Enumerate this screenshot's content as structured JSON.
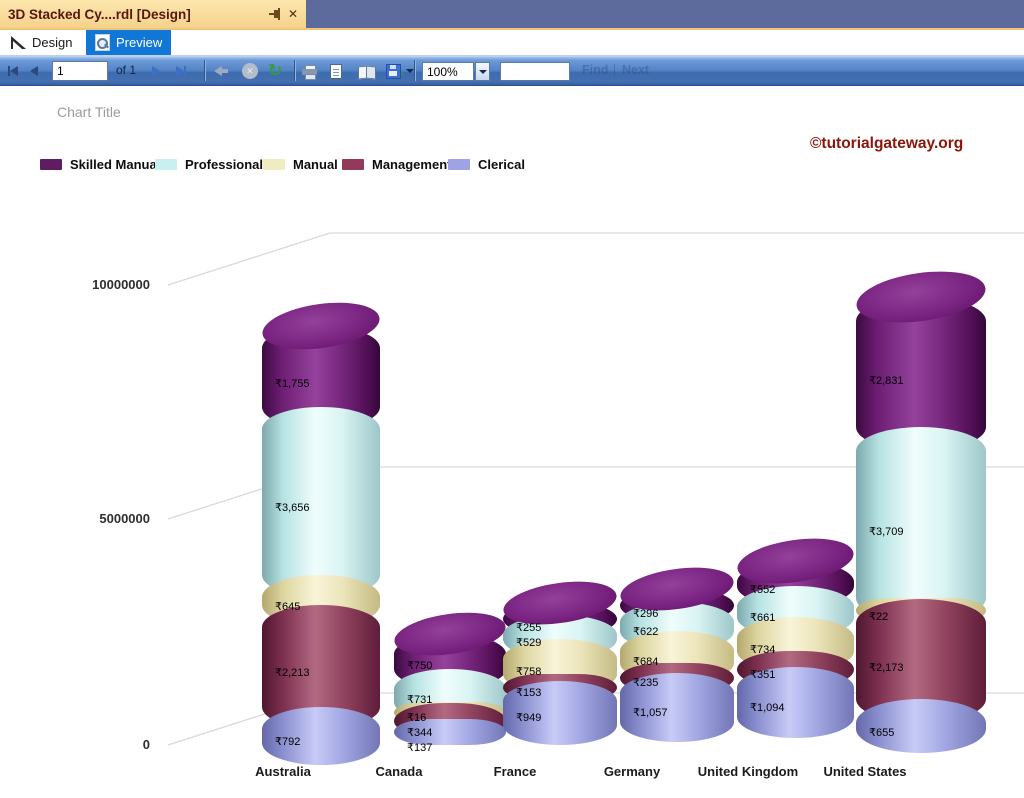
{
  "window": {
    "tab_title": "3D Stacked Cy....rdl [Design]"
  },
  "designer_tabs": {
    "design": "Design",
    "preview": "Preview"
  },
  "toolbar": {
    "page_value": "1",
    "of_label": "of 1",
    "zoom_value": "100%",
    "find_value": "",
    "find_label": "Find",
    "next_label": "Next"
  },
  "watermark": "©tutorialgateway.org",
  "chart_data": {
    "type": "3d-stacked-cylinder-bar",
    "title": "Chart Title",
    "currency_prefix": "₹",
    "legend_position": "top-left",
    "categories": [
      "Australia",
      "Canada",
      "France",
      "Germany",
      "United Kingdom",
      "United States"
    ],
    "series": [
      {
        "name": "Skilled Manual",
        "color": "#5E1D62",
        "values": [
          1755,
          750,
          255,
          296,
          552,
          2831
        ]
      },
      {
        "name": "Professional",
        "color": "#C9EFF0",
        "values": [
          3656,
          731,
          529,
          622,
          661,
          3709
        ]
      },
      {
        "name": "Manual",
        "color": "#F0ECC2",
        "values": [
          645,
          16,
          758,
          684,
          734,
          22
        ]
      },
      {
        "name": "Management",
        "color": "#93395B",
        "values": [
          2213,
          344,
          153,
          235,
          351,
          2173
        ]
      },
      {
        "name": "Clerical",
        "color": "#9FA3E3",
        "values": [
          792,
          137,
          949,
          1057,
          1094,
          655
        ]
      }
    ],
    "stack_order_bottom_to_top": [
      "Clerical",
      "Management",
      "Manual",
      "Professional",
      "Skilled Manual"
    ],
    "value_unit_multiplier": 1000,
    "y_axis": {
      "ticks": [
        "0",
        "5000000",
        "10000000"
      ],
      "min": 0,
      "max": 10000000,
      "gridlines": true
    }
  }
}
